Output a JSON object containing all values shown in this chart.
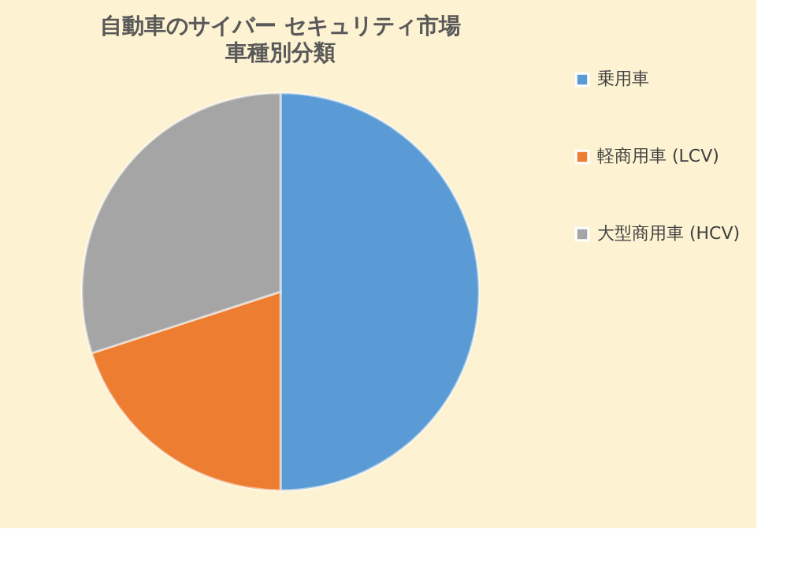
{
  "chart_data": {
    "type": "pie",
    "title": "自動車のサイバー セキュリティ市場",
    "subtitle": "車種別分類",
    "categories": [
      "乗用車",
      "軽商用車 (LCV)",
      "大型商用車 (HCV)"
    ],
    "values": [
      50,
      20,
      30
    ],
    "colors": [
      "#5b9bd5",
      "#ed7d31",
      "#a5a5a5"
    ],
    "legend": "right"
  }
}
